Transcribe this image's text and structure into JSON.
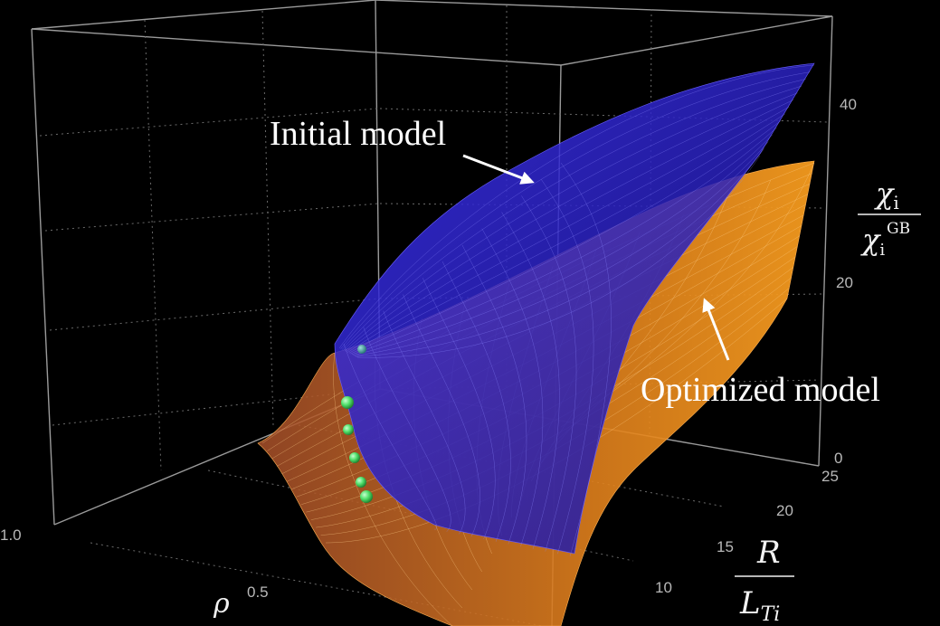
{
  "chart_data": {
    "type": "surface3d",
    "title": "",
    "axes": {
      "x": {
        "label": "ρ",
        "ticks": [
          "0.5",
          "1.0"
        ],
        "range": [
          0,
          1
        ]
      },
      "y": {
        "label_num": "R",
        "label_den": "L",
        "label_den_sub": "Ti",
        "ticks": [
          "10",
          "15",
          "20",
          "25"
        ],
        "range": [
          5,
          25
        ]
      },
      "z": {
        "label_num": "χ",
        "label_num_sub": "i",
        "label_den": "χ",
        "label_den_sub": "i",
        "label_den_sup": "GB",
        "ticks": [
          "0",
          "20",
          "40"
        ],
        "range": [
          0,
          45
        ]
      }
    },
    "grid": true,
    "series": [
      {
        "name": "Initial model",
        "color": "#2a22d8",
        "surface": "blue"
      },
      {
        "name": "Optimized model",
        "color": "#f0941e",
        "surface": "orange"
      }
    ],
    "annotations": [
      {
        "text": "Initial model",
        "points_to": "Initial model"
      },
      {
        "text": "Optimized model",
        "points_to": "Optimized model"
      }
    ],
    "points": [
      {
        "color": "#2f9c9c",
        "label": ""
      },
      {
        "color": "#4fe06a",
        "label": ""
      },
      {
        "color": "#4fe06a",
        "label": ""
      },
      {
        "color": "#4fe06a",
        "label": ""
      },
      {
        "color": "#4fe06a",
        "label": ""
      },
      {
        "color": "#4fe06a",
        "label": ""
      }
    ]
  },
  "labels": {
    "initial": "Initial model",
    "optimized": "Optimized model"
  }
}
